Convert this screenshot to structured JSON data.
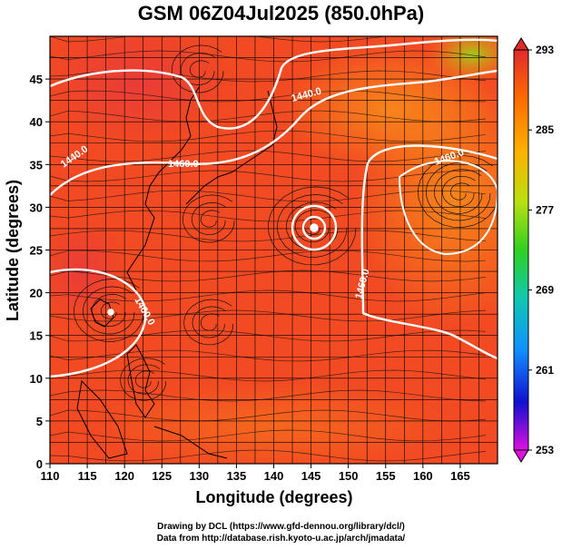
{
  "title": "GSM 06Z04Jul2025 (850.0hPa)",
  "axes": {
    "xlabel": "Longitude (degrees)",
    "ylabel": "Latitude  (degrees)",
    "xticks": [
      "110",
      "115",
      "120",
      "125",
      "130",
      "135",
      "140",
      "145",
      "150",
      "155",
      "160",
      "165"
    ],
    "yticks": [
      "0",
      "5",
      "10",
      "15",
      "20",
      "25",
      "30",
      "35",
      "40",
      "45"
    ],
    "xlim": [
      110,
      170
    ],
    "ylim": [
      0,
      50
    ]
  },
  "colorbar": {
    "labels": [
      "293",
      "285",
      "277",
      "269",
      "261",
      "253"
    ],
    "range": [
      253,
      293
    ],
    "colors": [
      "#e010e0",
      "#1010d0",
      "#1090ff",
      "#10c8b0",
      "#30d020",
      "#b8e010",
      "#ffb000",
      "#ff6a00",
      "#e02a2a"
    ]
  },
  "contours": {
    "labels": [
      "1440.0",
      "1460.0",
      "1440.0",
      "1460.0",
      "1460.0",
      "1460.0"
    ],
    "color": "#ffffff"
  },
  "credits": [
    "Drawing by DCL (https://www.gfd-dennou.org/library/dcl/)",
    "Data from http://database.rish.kyoto-u.ac.jp/arch/jmadata/"
  ]
}
